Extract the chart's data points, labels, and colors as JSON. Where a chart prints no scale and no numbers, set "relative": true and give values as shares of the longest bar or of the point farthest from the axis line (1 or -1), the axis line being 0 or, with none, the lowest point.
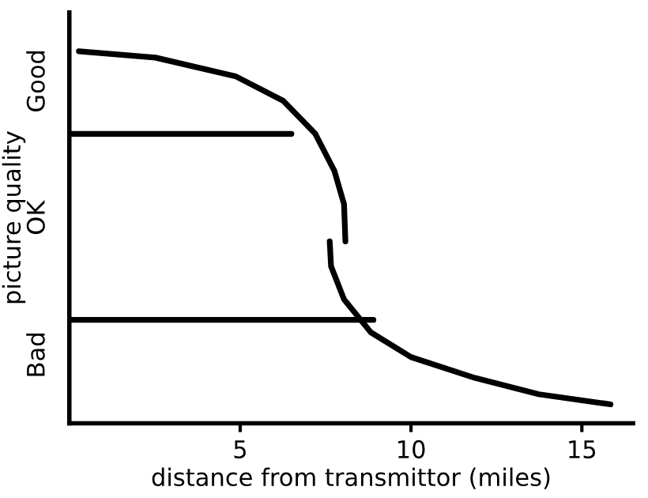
{
  "chart_data": {
    "type": "line",
    "xlabel": "distance from transmittor (miles)",
    "ylabel": "picture quality",
    "xlim": [
      0,
      16.5
    ],
    "xticks": [
      5,
      10,
      15
    ],
    "relative": true,
    "annotations": [
      "Good",
      "OK",
      "Bad"
    ],
    "color": "#000000",
    "series": [
      {
        "x": [
          0.28,
          2.52,
          4.86,
          6.26,
          7.2,
          7.76,
          8.04,
          8.08
        ],
        "values": [
          1,
          0.983,
          0.933,
          0.867,
          0.778,
          0.678,
          0.589,
          0.489
        ]
      },
      {
        "x": [
          7.62,
          7.66,
          8.04,
          8.83,
          10,
          11.87,
          13.74,
          15.84
        ],
        "values": [
          0.489,
          0.422,
          0.333,
          0.244,
          0.178,
          0.122,
          0.078,
          0.051
        ]
      },
      {
        "x": [
          0,
          6.5
        ],
        "values": [
          0.778,
          0.778
        ]
      },
      {
        "x": [
          0,
          8.9
        ],
        "values": [
          0.278,
          0.278
        ]
      }
    ]
  }
}
